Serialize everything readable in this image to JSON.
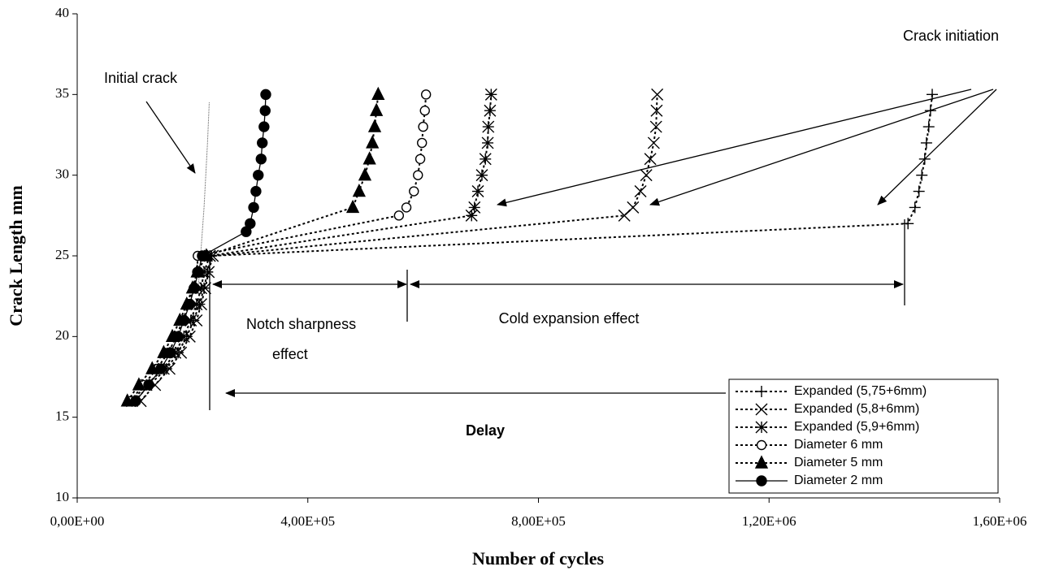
{
  "chart_data": {
    "type": "scatter",
    "x_label": "Number of cycles",
    "y_label": "Crack Length mm",
    "xlim": [
      0,
      1600000
    ],
    "ylim": [
      10,
      40
    ],
    "xticks": [
      {
        "value": 0,
        "label": "0,00E+00"
      },
      {
        "value": 400000,
        "label": "4,00E+05"
      },
      {
        "value": 800000,
        "label": "8,00E+05"
      },
      {
        "value": 1200000,
        "label": "1,20E+06"
      },
      {
        "value": 1600000,
        "label": "1,60E+06"
      }
    ],
    "yticks": [
      10,
      15,
      20,
      25,
      30,
      35,
      40
    ],
    "annotations": {
      "initial_crack": "Initial crack",
      "crack_initiation": "Crack initiation",
      "notch": [
        "Notch sharpness",
        "effect"
      ],
      "cold_expansion": "Cold expansion effect",
      "delay": "Delay"
    },
    "initial_crack_line": {
      "x": [
        210000,
        216000,
        220000,
        223000,
        226000,
        229000
      ],
      "y": [
        23,
        26,
        28,
        30,
        32,
        34.5
      ]
    },
    "series": [
      {
        "name": "Expanded (5,75+6mm)",
        "color": "#000000",
        "marker": "plus",
        "line": "dash",
        "x": [
          100000,
          125000,
          155000,
          175000,
          190000,
          202000,
          212000,
          220000,
          226000,
          233000,
          1441000,
          1453000,
          1460000,
          1465000,
          1470000,
          1473000,
          1477000,
          1480000,
          1483000
        ],
        "y": [
          16,
          17,
          18,
          19,
          20,
          21,
          22,
          23,
          24,
          25,
          27,
          28,
          29,
          30,
          31,
          32,
          33,
          34,
          35
        ]
      },
      {
        "name": "Expanded (5,8+6mm)",
        "color": "#000000",
        "marker": "x",
        "line": "dash",
        "x": [
          110000,
          135000,
          160000,
          180000,
          195000,
          207000,
          215000,
          222000,
          228000,
          235000,
          949000,
          964000,
          977000,
          987000,
          994000,
          1000000,
          1004000,
          1005000,
          1006000
        ],
        "y": [
          16,
          17,
          18,
          19,
          20,
          21,
          22,
          23,
          24,
          25,
          27.5,
          28,
          29,
          30,
          31,
          32,
          33,
          34,
          35
        ]
      },
      {
        "name": "Expanded (5,9+6mm)",
        "color": "#000000",
        "marker": "asterisk",
        "line": "dash",
        "x": [
          95000,
          120000,
          150000,
          170000,
          185000,
          197000,
          207000,
          215000,
          220000,
          230000,
          684000,
          689000,
          695000,
          702000,
          708000,
          712000,
          713000,
          716000,
          718000
        ],
        "y": [
          16,
          17,
          18,
          19,
          20,
          21,
          22,
          23,
          24,
          25,
          27.5,
          28,
          29,
          30,
          31,
          32,
          33,
          34,
          35
        ]
      },
      {
        "name": "Diameter  6 mm",
        "color": "#000000",
        "marker": "open-circle",
        "line": "dash",
        "x": [
          92000,
          115000,
          138000,
          158000,
          172000,
          183000,
          193000,
          202000,
          208000,
          209000,
          558000,
          571000,
          584000,
          591000,
          595000,
          598000,
          600000,
          603000,
          605000
        ],
        "y": [
          16,
          17,
          18,
          19,
          20,
          21,
          22,
          23,
          24,
          25,
          27.5,
          28,
          29,
          30,
          31,
          32,
          33,
          34,
          35
        ]
      },
      {
        "name": "Diameter 5 mm",
        "color": "#000000",
        "marker": "triangle",
        "line": "dash",
        "x": [
          87000,
          107000,
          130000,
          150000,
          165000,
          178000,
          190000,
          200000,
          208000,
          224000,
          478000,
          489000,
          499000,
          507000,
          512000,
          516000,
          519000,
          522000
        ],
        "y": [
          16,
          17,
          18,
          19,
          20,
          21,
          22,
          23,
          24,
          25,
          28,
          29,
          30,
          31,
          32,
          33,
          34,
          35
        ]
      },
      {
        "name": "Diameter 2 mm",
        "color": "#000000",
        "marker": "circle",
        "line": "solid",
        "x": [
          101500,
          124000,
          145000,
          162000,
          175000,
          185000,
          195000,
          203000,
          210000,
          217000,
          293000,
          300000,
          306000,
          310000,
          314000,
          319000,
          321000,
          324000,
          326000,
          327000
        ],
        "y": [
          16,
          17,
          18,
          19,
          20,
          21,
          22,
          23,
          24,
          25,
          26.5,
          27,
          28,
          29,
          30,
          31,
          32,
          33,
          34,
          35
        ]
      }
    ]
  }
}
